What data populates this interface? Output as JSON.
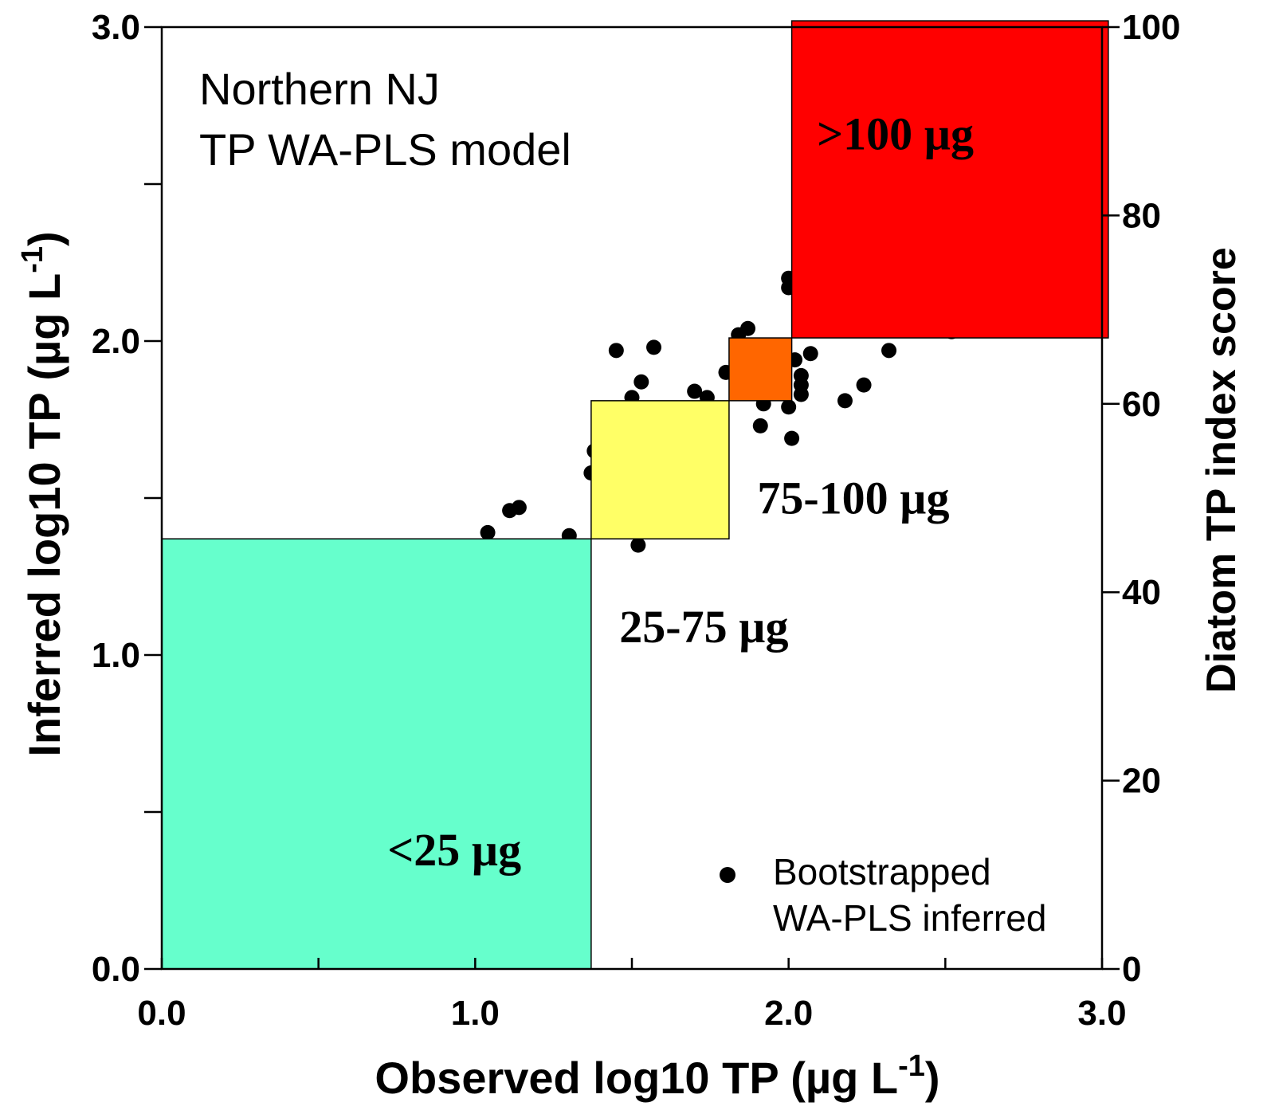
{
  "chart_data": {
    "type": "scatter",
    "annotation_lines": [
      "Northern NJ",
      "TP WA-PLS model"
    ],
    "xlabel": "Observed log10 TP (µg L",
    "xlabel_sup": "-1",
    "xlabel_end": ")",
    "ylabel": "Inferred log10 TP (µg L",
    "ylabel_sup": "-1",
    "ylabel_end": ")",
    "y2label": "Diatom TP index score",
    "xlim": [
      0,
      3
    ],
    "ylim": [
      0,
      3
    ],
    "y2lim": [
      0,
      100
    ],
    "x_ticks": [
      "0.0",
      "1.0",
      "2.0",
      "3.0"
    ],
    "y_ticks": [
      "0.0",
      "1.0",
      "2.0",
      "3.0"
    ],
    "y2_ticks": [
      "0",
      "20",
      "40",
      "60",
      "80",
      "100"
    ],
    "grid": false,
    "legend": {
      "position": "bottom-right",
      "label_lines": [
        "Bootstrapped",
        "WA-PLS inferred"
      ]
    },
    "regions": [
      {
        "label": "<25 µg",
        "x_range": [
          0,
          1.37
        ],
        "y_range": [
          0,
          1.37
        ],
        "color": "#66ffcc"
      },
      {
        "label": "25-75 µg",
        "x_range": [
          1.37,
          1.81
        ],
        "y_range": [
          1.37,
          1.81
        ],
        "color": "#ffff66"
      },
      {
        "label": "75-100 µg",
        "x_range": [
          1.81,
          2.01
        ],
        "y_range": [
          1.81,
          2.01
        ],
        "color": "#ff6600"
      },
      {
        "label": ">100 µg",
        "x_range": [
          2.01,
          3.02
        ],
        "y_range": [
          2.01,
          3.02
        ],
        "color": "#ff0000"
      }
    ],
    "points": [
      [
        1.04,
        1.39
      ],
      [
        1.11,
        1.46
      ],
      [
        1.14,
        1.47
      ],
      [
        1.3,
        1.38
      ],
      [
        1.45,
        1.97
      ],
      [
        1.5,
        1.82
      ],
      [
        1.53,
        1.87
      ],
      [
        1.57,
        1.98
      ],
      [
        1.52,
        1.35
      ],
      [
        1.38,
        1.65
      ],
      [
        1.37,
        1.58
      ],
      [
        1.7,
        1.84
      ],
      [
        1.74,
        1.82
      ],
      [
        1.8,
        1.9
      ],
      [
        1.84,
        2.02
      ],
      [
        1.87,
        2.04
      ],
      [
        1.91,
        1.73
      ],
      [
        1.92,
        1.8
      ],
      [
        2.0,
        1.79
      ],
      [
        2.01,
        1.69
      ],
      [
        2.02,
        1.94
      ],
      [
        2.04,
        1.89
      ],
      [
        2.04,
        1.86
      ],
      [
        2.04,
        1.83
      ],
      [
        2.07,
        1.96
      ],
      [
        2.18,
        1.81
      ],
      [
        2.24,
        1.86
      ],
      [
        2.32,
        1.97
      ],
      [
        2.52,
        2.03
      ],
      [
        2.0,
        2.2
      ],
      [
        2.0,
        2.17
      ]
    ]
  }
}
